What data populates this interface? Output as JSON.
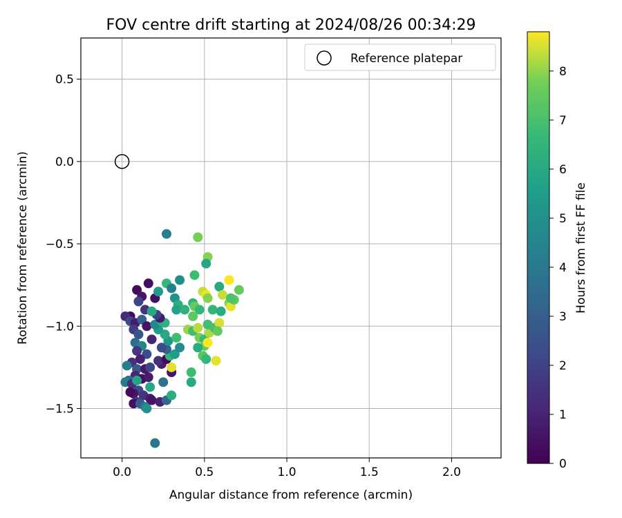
{
  "chart_data": {
    "type": "scatter",
    "title": "FOV centre drift starting at 2024/08/26 00:34:29",
    "xlabel": "Angular distance from reference (arcmin)",
    "ylabel": "Rotation from reference (arcmin)",
    "xlim": [
      -0.25,
      2.3
    ],
    "ylim": [
      -1.8,
      0.75
    ],
    "xticks": [
      "0.0",
      "0.5",
      "1.0",
      "1.5",
      "2.0"
    ],
    "yticks": [
      "0.5",
      "0.0",
      "−0.5",
      "−1.0",
      "−1.5"
    ],
    "grid": true,
    "legend_position": "top-right",
    "reference": {
      "label": "Reference platepar",
      "x": 0.0,
      "y": 0.0
    },
    "colorbar": {
      "label": "Hours from first FF file",
      "colormap": "viridis",
      "range": [
        0,
        8.8
      ],
      "ticks": [
        "0",
        "1",
        "2",
        "3",
        "4",
        "5",
        "6",
        "7",
        "8"
      ]
    },
    "points": [
      {
        "x": 0.09,
        "y": -0.78,
        "h": 0.3
      },
      {
        "x": 0.16,
        "y": -0.74,
        "h": 0.4
      },
      {
        "x": 0.12,
        "y": -0.82,
        "h": 0.6
      },
      {
        "x": 0.1,
        "y": -0.85,
        "h": 2.0
      },
      {
        "x": 0.14,
        "y": -0.9,
        "h": 1.5
      },
      {
        "x": 0.05,
        "y": -0.94,
        "h": 0.2
      },
      {
        "x": 0.02,
        "y": -0.94,
        "h": 1.2
      },
      {
        "x": 0.05,
        "y": -0.97,
        "h": 2.2
      },
      {
        "x": 0.08,
        "y": -0.98,
        "h": 0.8
      },
      {
        "x": 0.12,
        "y": -0.96,
        "h": 3.0
      },
      {
        "x": 0.07,
        "y": -1.02,
        "h": 1.8
      },
      {
        "x": 0.1,
        "y": -1.05,
        "h": 2.6
      },
      {
        "x": 0.15,
        "y": -1.0,
        "h": 0.5
      },
      {
        "x": 0.18,
        "y": -1.08,
        "h": 1.0
      },
      {
        "x": 0.08,
        "y": -1.1,
        "h": 3.5
      },
      {
        "x": 0.12,
        "y": -1.12,
        "h": 4.5
      },
      {
        "x": 0.09,
        "y": -1.15,
        "h": 1.6
      },
      {
        "x": 0.15,
        "y": -1.17,
        "h": 2.4
      },
      {
        "x": 0.11,
        "y": -1.2,
        "h": 0.9
      },
      {
        "x": 0.06,
        "y": -1.22,
        "h": 1.3
      },
      {
        "x": 0.03,
        "y": -1.24,
        "h": 4.2
      },
      {
        "x": 0.09,
        "y": -1.26,
        "h": 2.8
      },
      {
        "x": 0.14,
        "y": -1.26,
        "h": 0.7
      },
      {
        "x": 0.17,
        "y": -1.25,
        "h": 2.1
      },
      {
        "x": 0.08,
        "y": -1.3,
        "h": 1.1
      },
      {
        "x": 0.12,
        "y": -1.32,
        "h": 0.4
      },
      {
        "x": 0.16,
        "y": -1.31,
        "h": 0.8
      },
      {
        "x": 0.04,
        "y": -1.33,
        "h": 3.6
      },
      {
        "x": 0.02,
        "y": -1.34,
        "h": 4.1
      },
      {
        "x": 0.06,
        "y": -1.35,
        "h": 1.4
      },
      {
        "x": 0.09,
        "y": -1.33,
        "h": 5.8
      },
      {
        "x": 0.17,
        "y": -1.37,
        "h": 5.9
      },
      {
        "x": 0.1,
        "y": -1.39,
        "h": 2.2
      },
      {
        "x": 0.07,
        "y": -1.41,
        "h": 0.6
      },
      {
        "x": 0.05,
        "y": -1.4,
        "h": 0.3
      },
      {
        "x": 0.13,
        "y": -1.42,
        "h": 1.5
      },
      {
        "x": 0.17,
        "y": -1.44,
        "h": 0.9
      },
      {
        "x": 0.18,
        "y": -1.45,
        "h": 0.5
      },
      {
        "x": 0.09,
        "y": -1.46,
        "h": 1.7
      },
      {
        "x": 0.07,
        "y": -1.47,
        "h": 0.4
      },
      {
        "x": 0.11,
        "y": -1.47,
        "h": 2.9
      },
      {
        "x": 0.14,
        "y": -1.49,
        "h": 4.0
      },
      {
        "x": 0.15,
        "y": -1.5,
        "h": 5.0
      },
      {
        "x": 0.23,
        "y": -1.46,
        "h": 1.0
      },
      {
        "x": 0.27,
        "y": -1.45,
        "h": 3.3
      },
      {
        "x": 0.25,
        "y": -1.34,
        "h": 3.8
      },
      {
        "x": 0.2,
        "y": -1.71,
        "h": 3.9
      },
      {
        "x": 0.3,
        "y": -1.42,
        "h": 6.2
      },
      {
        "x": 0.3,
        "y": -1.28,
        "h": 0.6
      },
      {
        "x": 0.3,
        "y": -1.25,
        "h": 8.6
      },
      {
        "x": 0.24,
        "y": -1.23,
        "h": 0.8
      },
      {
        "x": 0.22,
        "y": -1.21,
        "h": 1.4
      },
      {
        "x": 0.27,
        "y": -1.2,
        "h": 0.2
      },
      {
        "x": 0.29,
        "y": -1.18,
        "h": 6.4
      },
      {
        "x": 0.32,
        "y": -1.17,
        "h": 5.5
      },
      {
        "x": 0.35,
        "y": -1.13,
        "h": 4.8
      },
      {
        "x": 0.27,
        "y": -1.14,
        "h": 3.1
      },
      {
        "x": 0.24,
        "y": -1.13,
        "h": 2.3
      },
      {
        "x": 0.28,
        "y": -1.09,
        "h": 5.2
      },
      {
        "x": 0.33,
        "y": -1.07,
        "h": 6.8
      },
      {
        "x": 0.26,
        "y": -1.05,
        "h": 6.0
      },
      {
        "x": 0.22,
        "y": -1.02,
        "h": 5.6
      },
      {
        "x": 0.2,
        "y": -0.99,
        "h": 4.6
      },
      {
        "x": 0.24,
        "y": -0.97,
        "h": 6.1
      },
      {
        "x": 0.26,
        "y": -0.98,
        "h": 6.3
      },
      {
        "x": 0.23,
        "y": -0.95,
        "h": 0.7
      },
      {
        "x": 0.21,
        "y": -0.93,
        "h": 1.9
      },
      {
        "x": 0.18,
        "y": -0.91,
        "h": 6.0
      },
      {
        "x": 0.2,
        "y": -0.83,
        "h": 0.4
      },
      {
        "x": 0.22,
        "y": -0.79,
        "h": 5.4
      },
      {
        "x": 0.27,
        "y": -0.74,
        "h": 6.6
      },
      {
        "x": 0.3,
        "y": -0.77,
        "h": 4.3
      },
      {
        "x": 0.35,
        "y": -0.72,
        "h": 4.9
      },
      {
        "x": 0.32,
        "y": -0.83,
        "h": 5.1
      },
      {
        "x": 0.34,
        "y": -0.87,
        "h": 6.2
      },
      {
        "x": 0.33,
        "y": -0.9,
        "h": 5.7
      },
      {
        "x": 0.38,
        "y": -0.9,
        "h": 6.4
      },
      {
        "x": 0.27,
        "y": -0.44,
        "h": 4.3
      },
      {
        "x": 0.46,
        "y": -0.46,
        "h": 7.8
      },
      {
        "x": 0.52,
        "y": -0.58,
        "h": 7.9
      },
      {
        "x": 0.51,
        "y": -0.62,
        "h": 5.9
      },
      {
        "x": 0.44,
        "y": -0.69,
        "h": 6.8
      },
      {
        "x": 0.49,
        "y": -0.79,
        "h": 8.4
      },
      {
        "x": 0.51,
        "y": -0.81,
        "h": 8.7
      },
      {
        "x": 0.52,
        "y": -0.83,
        "h": 7.9
      },
      {
        "x": 0.43,
        "y": -0.86,
        "h": 6.4
      },
      {
        "x": 0.44,
        "y": -0.88,
        "h": 7.6
      },
      {
        "x": 0.47,
        "y": -0.9,
        "h": 6.6
      },
      {
        "x": 0.43,
        "y": -0.94,
        "h": 7.4
      },
      {
        "x": 0.4,
        "y": -1.02,
        "h": 8.1
      },
      {
        "x": 0.43,
        "y": -1.03,
        "h": 6.9
      },
      {
        "x": 0.46,
        "y": -1.01,
        "h": 8.3
      },
      {
        "x": 0.47,
        "y": -1.07,
        "h": 7.8
      },
      {
        "x": 0.5,
        "y": -1.08,
        "h": 6.7
      },
      {
        "x": 0.53,
        "y": -1.04,
        "h": 8.2
      },
      {
        "x": 0.52,
        "y": -0.99,
        "h": 6.9
      },
      {
        "x": 0.56,
        "y": -1.01,
        "h": 7.0
      },
      {
        "x": 0.59,
        "y": -0.98,
        "h": 8.5
      },
      {
        "x": 0.58,
        "y": -1.03,
        "h": 7.5
      },
      {
        "x": 0.5,
        "y": -1.12,
        "h": 7.6
      },
      {
        "x": 0.52,
        "y": -1.1,
        "h": 8.8
      },
      {
        "x": 0.46,
        "y": -1.13,
        "h": 6.1
      },
      {
        "x": 0.49,
        "y": -1.18,
        "h": 7.3
      },
      {
        "x": 0.51,
        "y": -1.2,
        "h": 6.5
      },
      {
        "x": 0.57,
        "y": -1.21,
        "h": 8.6
      },
      {
        "x": 0.42,
        "y": -1.28,
        "h": 6.8
      },
      {
        "x": 0.42,
        "y": -1.34,
        "h": 6.0
      },
      {
        "x": 0.55,
        "y": -0.9,
        "h": 6.5
      },
      {
        "x": 0.6,
        "y": -0.91,
        "h": 6.1
      },
      {
        "x": 0.59,
        "y": -0.76,
        "h": 6.0
      },
      {
        "x": 0.61,
        "y": -0.81,
        "h": 8.4
      },
      {
        "x": 0.65,
        "y": -0.86,
        "h": 7.9
      },
      {
        "x": 0.66,
        "y": -0.88,
        "h": 8.6
      },
      {
        "x": 0.68,
        "y": -0.84,
        "h": 7.4
      },
      {
        "x": 0.66,
        "y": -0.83,
        "h": 7.1
      },
      {
        "x": 0.65,
        "y": -0.72,
        "h": 8.8
      },
      {
        "x": 0.71,
        "y": -0.78,
        "h": 7.6
      }
    ]
  }
}
